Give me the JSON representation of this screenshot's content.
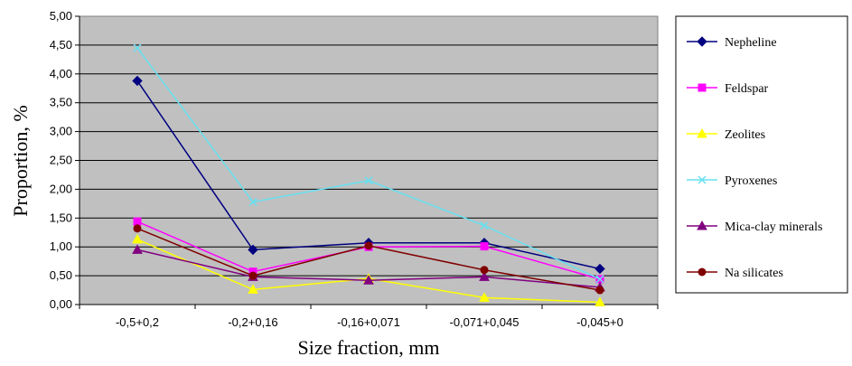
{
  "chart_data": {
    "type": "line",
    "title": "",
    "xlabel": "Size fraction, mm",
    "ylabel": "Proportion, %",
    "categories": [
      "-0,5+0,2",
      "-0,2+0,16",
      "-0,16+0,071",
      "-0,071+0,045",
      "-0,045+0"
    ],
    "ylim": [
      0,
      5
    ],
    "yticks": [
      "0,00",
      "0,50",
      "1,00",
      "1,50",
      "2,00",
      "2,50",
      "3,00",
      "3,50",
      "4,00",
      "4,50",
      "5,00"
    ],
    "grid": true,
    "legend_position": "right",
    "plot_background": "#c0c0c0",
    "series": [
      {
        "name": "Nepheline",
        "color": "#000080",
        "marker": "diamond",
        "values": [
          3.88,
          0.95,
          1.07,
          1.07,
          0.62
        ]
      },
      {
        "name": "Feldspar",
        "color": "#ff00ff",
        "marker": "square",
        "values": [
          1.44,
          0.57,
          1.0,
          1.01,
          0.44
        ]
      },
      {
        "name": "Zeolites",
        "color": "#ffff00",
        "marker": "triangle",
        "values": [
          1.13,
          0.26,
          0.45,
          0.12,
          0.04
        ]
      },
      {
        "name": "Pyroxenes",
        "color": "#66e0f0",
        "marker": "x",
        "values": [
          4.45,
          1.78,
          2.15,
          1.37,
          0.44
        ]
      },
      {
        "name": "Mica-clay minerals",
        "color": "#800080",
        "marker": "triangle",
        "values": [
          0.95,
          0.48,
          0.42,
          0.48,
          0.3
        ]
      },
      {
        "name": "Na silicates",
        "color": "#800000",
        "marker": "circle",
        "values": [
          1.32,
          0.5,
          1.02,
          0.6,
          0.25
        ]
      }
    ]
  }
}
